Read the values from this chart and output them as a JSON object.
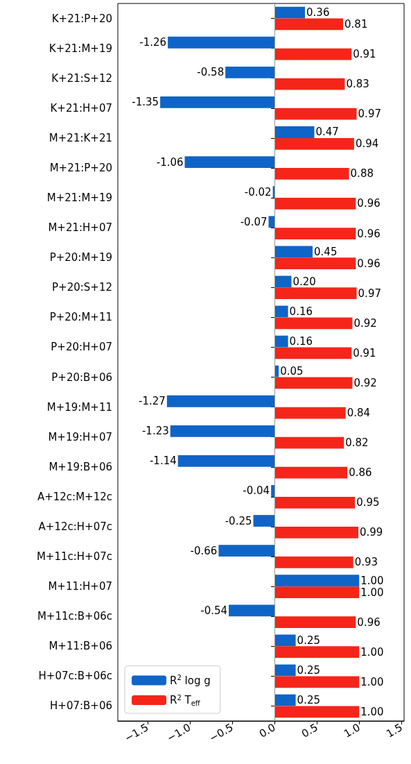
{
  "chart_data": {
    "type": "bar",
    "orientation": "horizontal",
    "categories": [
      "K+21:P+20",
      "K+21:M+19",
      "K+21:S+12",
      "K+21:H+07",
      "M+21:K+21",
      "M+21:P+20",
      "M+21:M+19",
      "M+21:H+07",
      "P+20:M+19",
      "P+20:S+12",
      "P+20:M+11",
      "P+20:H+07",
      "P+20:B+06",
      "M+19:M+11",
      "M+19:H+07",
      "M+19:B+06",
      "A+12c:M+12c",
      "A+12c:H+07c",
      "M+11c:H+07c",
      "M+11:H+07",
      "M+11c:B+06c",
      "M+11:B+06",
      "H+07c:B+06c",
      "H+07:B+06"
    ],
    "series": [
      {
        "name": "R$^{2}$ log g",
        "color": "#0f64c8",
        "values": [
          0.36,
          -1.26,
          -0.58,
          -1.35,
          0.47,
          -1.06,
          -0.02,
          -0.07,
          0.45,
          0.2,
          0.16,
          0.16,
          0.05,
          -1.27,
          -1.23,
          -1.14,
          -0.04,
          -0.25,
          -0.66,
          1.0,
          -0.54,
          0.25,
          0.25,
          0.25
        ],
        "value_labels": [
          "0.36",
          "-1.26",
          "-0.58",
          "-1.35",
          "0.47",
          "-1.06",
          "-0.02",
          "-0.07",
          "0.45",
          "0.20",
          "0.16",
          "0.16",
          "0.05",
          "-1.27",
          "-1.23",
          "-1.14",
          "-0.04",
          "-0.25",
          "-0.66",
          "1.00",
          "-0.54",
          "0.25",
          "0.25",
          "0.25"
        ]
      },
      {
        "name": "R$^{2}$ T$_{eff}$",
        "color": "#f5251a",
        "values": [
          0.81,
          0.91,
          0.83,
          0.97,
          0.94,
          0.88,
          0.96,
          0.96,
          0.96,
          0.97,
          0.92,
          0.91,
          0.92,
          0.84,
          0.82,
          0.86,
          0.95,
          0.99,
          0.93,
          1.0,
          0.96,
          1.0,
          1.0,
          1.0
        ],
        "value_labels": [
          "0.81",
          "0.91",
          "0.83",
          "0.97",
          "0.94",
          "0.88",
          "0.96",
          "0.96",
          "0.96",
          "0.97",
          "0.92",
          "0.91",
          "0.92",
          "0.84",
          "0.82",
          "0.86",
          "0.95",
          "0.99",
          "0.93",
          "1.00",
          "0.96",
          "1.00",
          "1.00",
          "1.00"
        ]
      }
    ],
    "xlim": [
      -1.85,
      1.53
    ],
    "xticks": [
      {
        "value": -1.5,
        "label": "−1.5"
      },
      {
        "value": -1.0,
        "label": "−1.0"
      },
      {
        "value": -0.5,
        "label": "−0.5"
      },
      {
        "value": 0.0,
        "label": "0.0"
      },
      {
        "value": 0.5,
        "label": "0.5"
      },
      {
        "value": 1.0,
        "label": "1.0"
      },
      {
        "value": 1.5,
        "label": "1.5"
      }
    ],
    "ref_lines": [
      {
        "axis": "x",
        "value": 0,
        "color": "#999999"
      }
    ],
    "grid": false,
    "legend": "bottom left"
  }
}
